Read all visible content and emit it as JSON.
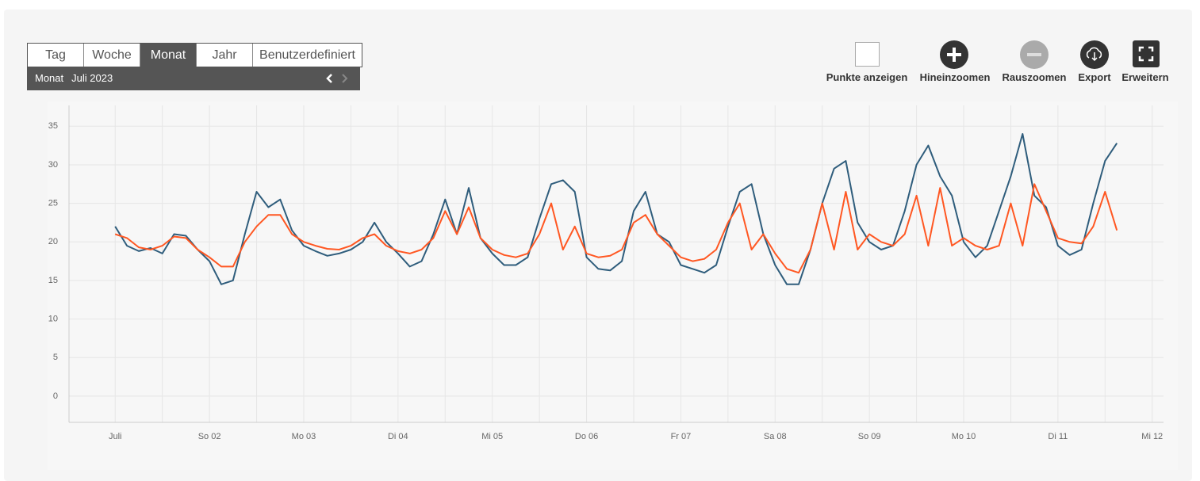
{
  "tabs": [
    "Tag",
    "Woche",
    "Monat",
    "Jahr",
    "Benutzerdefiniert"
  ],
  "active_tab": 2,
  "period_bar": {
    "label": "Monat",
    "value": "Juli 2023"
  },
  "toolbar": [
    "Punkte anzeigen",
    "Hineinzoomen",
    "Rauszoomen",
    "Export",
    "Erweitern"
  ],
  "chart_data": {
    "type": "line",
    "x": [
      0,
      0.125,
      0.25,
      0.375,
      0.5,
      0.625,
      0.75,
      0.875,
      1,
      1.125,
      1.25,
      1.375,
      1.5,
      1.625,
      1.75,
      1.875,
      2,
      2.125,
      2.25,
      2.375,
      2.5,
      2.625,
      2.75,
      2.875,
      3,
      3.125,
      3.25,
      3.375,
      3.5,
      3.625,
      3.75,
      3.875,
      4,
      4.125,
      4.25,
      4.375,
      4.5,
      4.625,
      4.75,
      4.875,
      5,
      5.125,
      5.25,
      5.375,
      5.5,
      5.625,
      5.75,
      5.875,
      6,
      6.125,
      6.25,
      6.375,
      6.5,
      6.625,
      6.75,
      6.875,
      7,
      7.125,
      7.25,
      7.375,
      7.5,
      7.625,
      7.75,
      7.875,
      8,
      8.125,
      8.25,
      8.375,
      8.5,
      8.625,
      8.75,
      8.875,
      9,
      9.125,
      9.25,
      9.375,
      9.5,
      9.625,
      9.75,
      9.875,
      10,
      10.125,
      10.25,
      10.375,
      10.5,
      10.625
    ],
    "series": [
      {
        "color": "#2f5d7c",
        "values": [
          22,
          19.5,
          18.8,
          19.2,
          18.5,
          21,
          20.8,
          19,
          17.5,
          14.5,
          15,
          21,
          26.5,
          24.5,
          25.5,
          21.5,
          19.5,
          18.8,
          18.2,
          18.5,
          19,
          20,
          22.5,
          20,
          18.5,
          16.8,
          17.5,
          21,
          25.5,
          21,
          27,
          20.5,
          18.5,
          17,
          17,
          18,
          23,
          27.5,
          28,
          26.5,
          18,
          16.5,
          16.3,
          17.5,
          24,
          26.5,
          21,
          20,
          17,
          16.5,
          16,
          17,
          22,
          26.5,
          27.5,
          21,
          17,
          14.5,
          14.5,
          19,
          25,
          29.5,
          30.5,
          22.5,
          20,
          19,
          19.5,
          24,
          30,
          32.5,
          28.5,
          26,
          20,
          18,
          19.5,
          24,
          28.5,
          34,
          26,
          24.5,
          19.5,
          18.3,
          19,
          25,
          30.5,
          32.8
        ]
      },
      {
        "color": "#ff5722",
        "values": [
          21,
          20.5,
          19.3,
          19,
          19.5,
          20.7,
          20.5,
          19,
          18,
          16.8,
          16.8,
          20,
          22,
          23.5,
          23.5,
          21,
          20,
          19.5,
          19.1,
          19,
          19.5,
          20.5,
          21,
          19.5,
          18.8,
          18.5,
          19,
          20.5,
          24,
          21,
          24.5,
          20.5,
          19,
          18.3,
          18,
          18.5,
          21,
          25,
          19,
          22,
          18.5,
          18,
          18.2,
          19,
          22.5,
          23.5,
          21,
          19.5,
          18,
          17.5,
          17.8,
          19,
          22.5,
          25,
          19,
          21,
          18.5,
          16.5,
          16,
          19,
          25,
          19,
          26.5,
          19,
          21,
          20,
          19.5,
          21,
          26,
          19.5,
          27,
          19.5,
          20.5,
          19.5,
          19,
          19.5,
          25,
          19.5,
          27.5,
          24,
          20.5,
          20,
          19.8,
          22,
          26.5,
          21.5
        ]
      }
    ],
    "xlim": [
      -0.49,
      11.12
    ],
    "xticks": [
      {
        "value": 0,
        "label": "Juli"
      },
      {
        "value": 1,
        "label": "So 02"
      },
      {
        "value": 2,
        "label": "Mo 03"
      },
      {
        "value": 3,
        "label": "Di 04"
      },
      {
        "value": 4,
        "label": "Mi 05"
      },
      {
        "value": 5,
        "label": "Do 06"
      },
      {
        "value": 6,
        "label": "Fr 07"
      },
      {
        "value": 7,
        "label": "Sa 08"
      },
      {
        "value": 8,
        "label": "So 09"
      },
      {
        "value": 9,
        "label": "Mo 10"
      },
      {
        "value": 10,
        "label": "Di 11"
      },
      {
        "value": 11,
        "label": "Mi 12"
      }
    ],
    "x_minor_ticks": [
      0.5,
      1.5,
      2.5,
      3.5,
      4.5,
      5.5,
      6.5,
      7.5,
      8.5,
      9.5,
      10.5
    ],
    "ylim": [
      -3.4,
      37.7
    ],
    "yticks": [
      0,
      5,
      10,
      15,
      20,
      25,
      30,
      35
    ],
    "grid": true
  }
}
